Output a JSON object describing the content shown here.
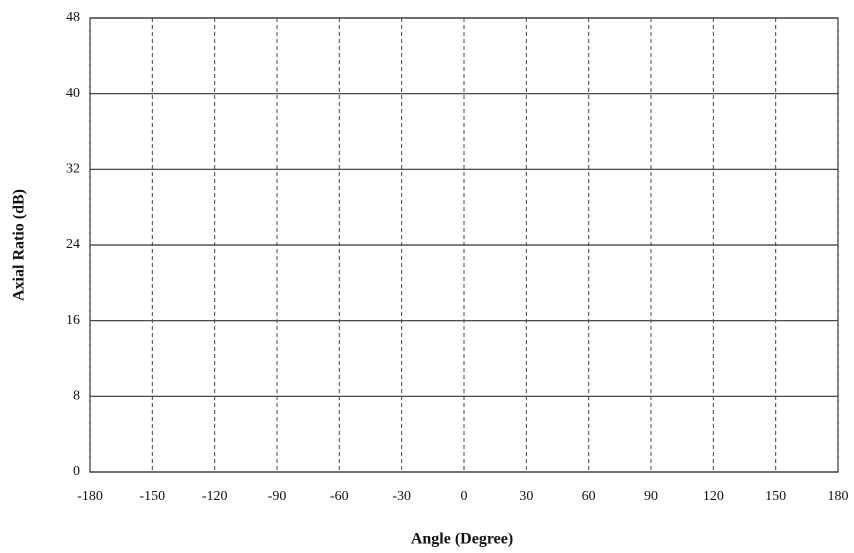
{
  "chart_data": {
    "type": "line",
    "xlabel": "Angle (Degree)",
    "ylabel": "Axial Ratio (dB)",
    "xlim": [
      -180,
      180
    ],
    "xticks": [
      -180,
      -150,
      -120,
      -90,
      -60,
      -30,
      0,
      30,
      60,
      90,
      120,
      150,
      180
    ],
    "ylim": [
      0,
      48
    ],
    "yticks": [
      0,
      8,
      16,
      24,
      32,
      40,
      48
    ],
    "grid": true,
    "series": []
  }
}
